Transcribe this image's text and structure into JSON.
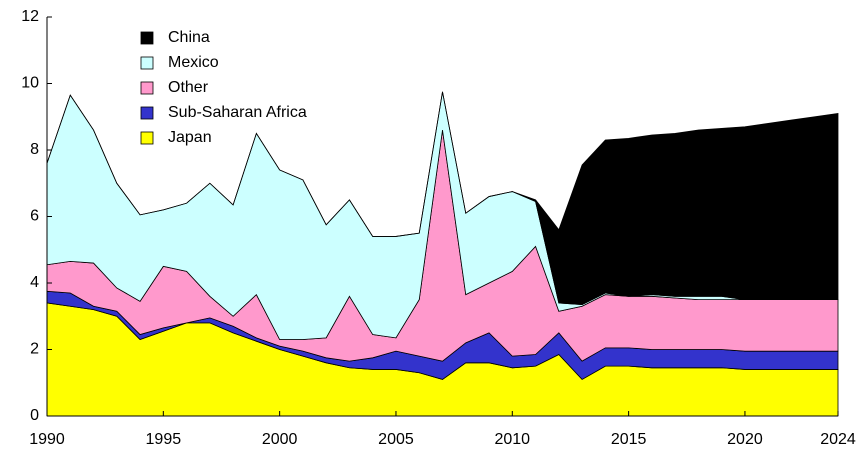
{
  "chart_data": {
    "type": "stacked_area",
    "x": [
      1990,
      1991,
      1992,
      1993,
      1994,
      1995,
      1996,
      1997,
      1998,
      1999,
      2000,
      2001,
      2002,
      2003,
      2004,
      2005,
      2006,
      2007,
      2008,
      2009,
      2010,
      2011,
      2012,
      2013,
      2014,
      2015,
      2016,
      2017,
      2018,
      2019,
      2020,
      2021,
      2022,
      2023,
      2024
    ],
    "series": [
      {
        "name": "China",
        "color": "#000000",
        "values": [
          0,
          0,
          0,
          0,
          0,
          0,
          0,
          0,
          0,
          0,
          0,
          0,
          0,
          0,
          0,
          0,
          0,
          0,
          0,
          0,
          0,
          0.05,
          2.2,
          4.2,
          4.6,
          4.75,
          4.8,
          4.9,
          5.0,
          5.05,
          5.2,
          5.3,
          5.4,
          5.5,
          5.6
        ]
      },
      {
        "name": "Mexico",
        "color": "#ccffff",
        "values": [
          3.05,
          5.0,
          4.0,
          3.15,
          2.6,
          1.7,
          2.05,
          3.4,
          3.35,
          4.85,
          5.1,
          4.8,
          3.4,
          2.9,
          2.95,
          3.05,
          2.0,
          1.15,
          2.45,
          2.6,
          2.4,
          1.35,
          0.25,
          0.05,
          0.05,
          0,
          0.05,
          0.05,
          0.1,
          0.1,
          0,
          0,
          0,
          0,
          0
        ]
      },
      {
        "name": "Other",
        "color": "#ff99cc",
        "values": [
          0.8,
          0.95,
          1.3,
          0.7,
          1.0,
          1.85,
          1.55,
          0.65,
          0.3,
          1.3,
          0.2,
          0.35,
          0.6,
          1.95,
          0.7,
          0.4,
          1.7,
          6.95,
          1.45,
          1.5,
          2.55,
          3.25,
          0.65,
          1.65,
          1.6,
          1.55,
          1.6,
          1.55,
          1.5,
          1.5,
          1.55,
          1.55,
          1.55,
          1.55,
          1.55
        ]
      },
      {
        "name": "Sub-Saharan Africa",
        "color": "#3333cc",
        "values": [
          0.35,
          0.4,
          0.1,
          0.15,
          0.15,
          0.1,
          0,
          0.15,
          0.2,
          0.1,
          0.1,
          0.15,
          0.15,
          0.2,
          0.35,
          0.55,
          0.5,
          0.55,
          0.6,
          0.9,
          0.35,
          0.35,
          0.65,
          0.55,
          0.55,
          0.55,
          0.55,
          0.55,
          0.55,
          0.55,
          0.55,
          0.55,
          0.55,
          0.55,
          0.55
        ]
      },
      {
        "name": "Japan",
        "color": "#ffff00",
        "values": [
          3.4,
          3.3,
          3.2,
          3.0,
          2.3,
          2.55,
          2.8,
          2.8,
          2.5,
          2.25,
          2.0,
          1.8,
          1.6,
          1.45,
          1.4,
          1.4,
          1.3,
          1.1,
          1.6,
          1.6,
          1.45,
          1.5,
          1.85,
          1.1,
          1.5,
          1.5,
          1.45,
          1.45,
          1.45,
          1.45,
          1.4,
          1.4,
          1.4,
          1.4,
          1.4
        ]
      }
    ],
    "xlim": [
      1990,
      2024
    ],
    "xticks": [
      1990,
      1995,
      2000,
      2005,
      2010,
      2015,
      2020,
      2024
    ],
    "ylim": [
      0,
      12
    ],
    "yticks": [
      0,
      2,
      4,
      6,
      8,
      10,
      12
    ]
  }
}
